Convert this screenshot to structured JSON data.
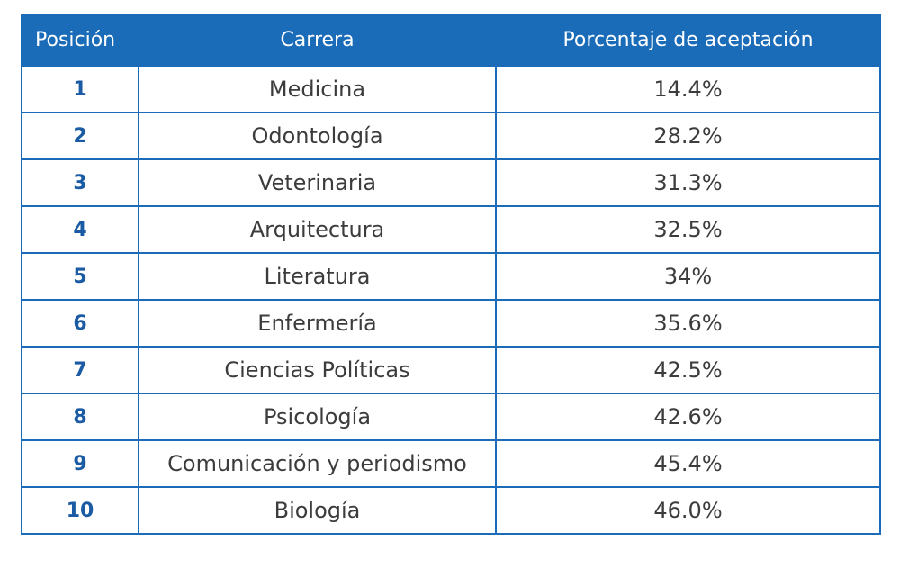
{
  "table": {
    "headers": {
      "position": "Posición",
      "career": "Carrera",
      "acceptance": "Porcentaje de aceptación"
    },
    "rows": [
      {
        "position": "1",
        "career": "Medicina",
        "acceptance": "14.4%"
      },
      {
        "position": "2",
        "career": "Odontología",
        "acceptance": "28.2%"
      },
      {
        "position": "3",
        "career": "Veterinaria",
        "acceptance": "31.3%"
      },
      {
        "position": "4",
        "career": "Arquitectura",
        "acceptance": "32.5%"
      },
      {
        "position": "5",
        "career": "Literatura",
        "acceptance": "34%"
      },
      {
        "position": "6",
        "career": "Enfermería",
        "acceptance": "35.6%"
      },
      {
        "position": "7",
        "career": "Ciencias Políticas",
        "acceptance": "42.5%"
      },
      {
        "position": "8",
        "career": "Psicología",
        "acceptance": "42.6%"
      },
      {
        "position": "9",
        "career": "Comunicación y periodismo",
        "acceptance": "45.4%"
      },
      {
        "position": "10",
        "career": "Biología",
        "acceptance": "46.0%"
      }
    ]
  },
  "colors": {
    "header_bg": "#1a6bb8",
    "border": "#1a6bb8",
    "position_text": "#1a5ba3"
  }
}
